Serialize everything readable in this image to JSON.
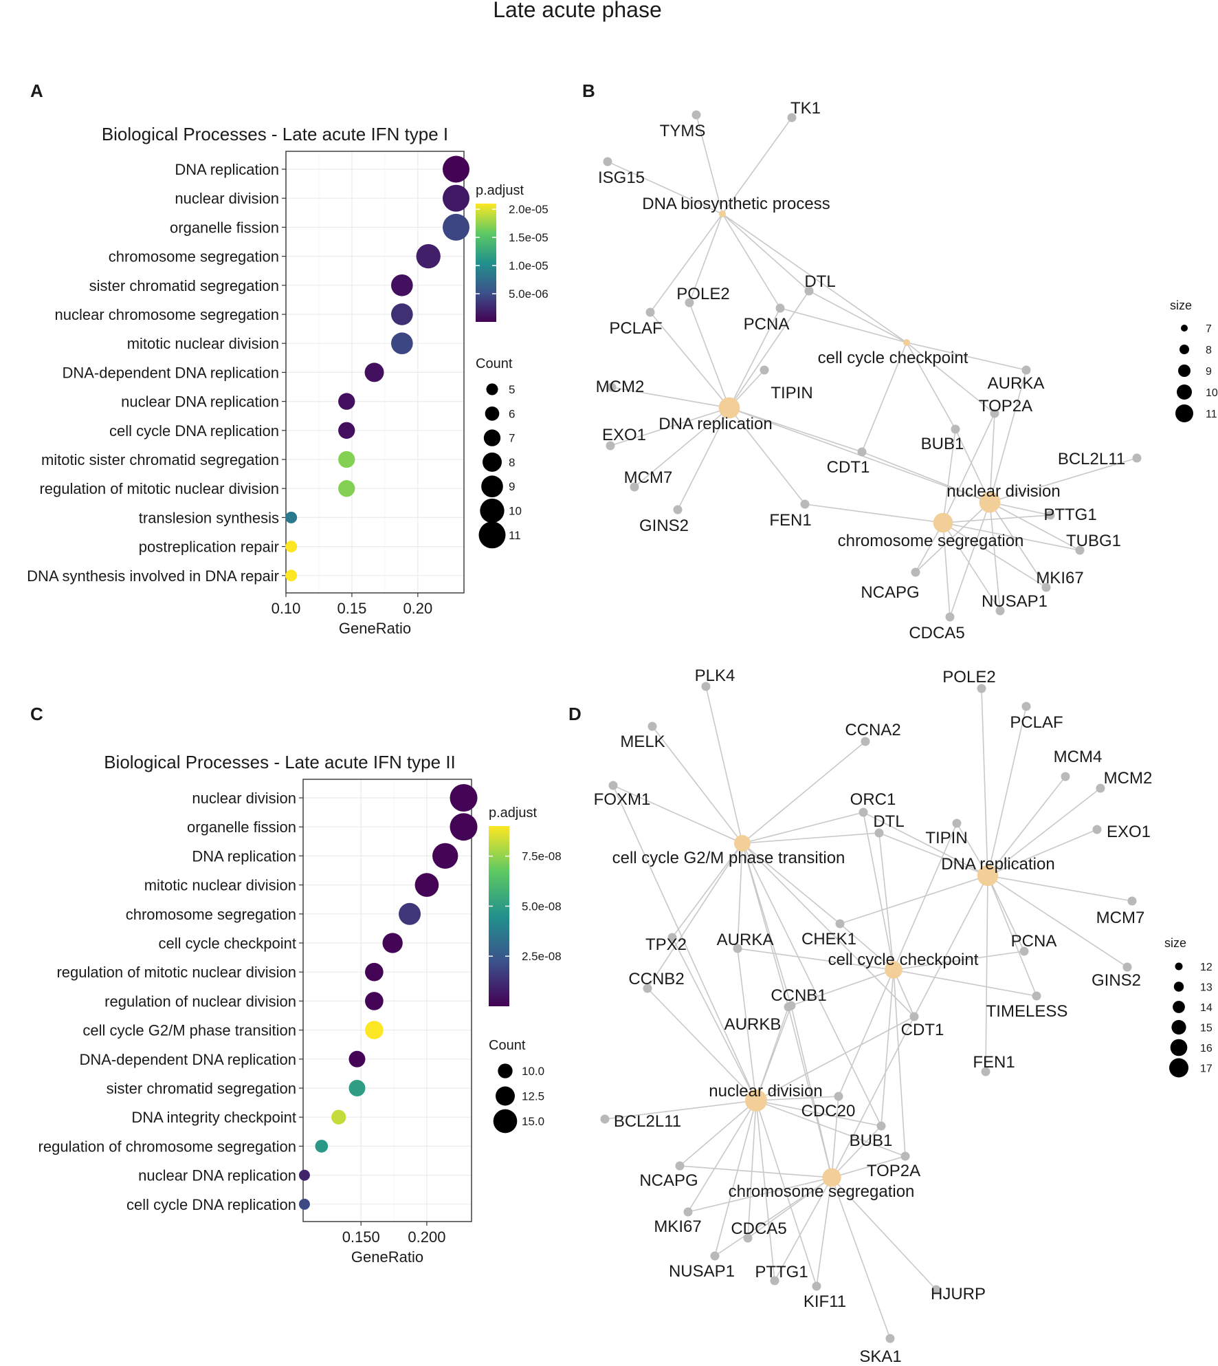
{
  "figure_title": "Late acute phase",
  "panels": {
    "A": "A",
    "B": "B",
    "C": "C",
    "D": "D"
  },
  "chart_data": [
    {
      "panel": "A",
      "type": "scatter",
      "title": "Biological Processes - Late acute IFN type I",
      "xlabel": "GeneRatio",
      "xlim": [
        0.1,
        0.235
      ],
      "xticks": [
        0.1,
        0.15,
        0.2
      ],
      "xtick_labels": [
        "0.10",
        "0.15",
        "0.20"
      ],
      "categories": [
        "DNA replication",
        "nuclear division",
        "organelle fission",
        "chromosome segregation",
        "sister chromatid segregation",
        "nuclear chromosome segregation",
        "mitotic nuclear division",
        "DNA-dependent DNA replication",
        "nuclear DNA replication",
        "cell cycle DNA replication",
        "mitotic sister chromatid segregation",
        "regulation of mitotic nuclear division",
        "translesion synthesis",
        "postreplication repair",
        "DNA synthesis involved in DNA repair"
      ],
      "gene_ratio": [
        0.229,
        0.229,
        0.229,
        0.208,
        0.188,
        0.188,
        0.188,
        0.167,
        0.146,
        0.146,
        0.146,
        0.146,
        0.104,
        0.104,
        0.104
      ],
      "count": [
        11,
        11,
        11,
        10,
        9,
        9,
        9,
        8,
        7,
        7,
        7,
        7,
        5,
        5,
        5
      ],
      "p_adjust": [
        1e-07,
        1.5e-06,
        4.5e-06,
        2e-06,
        1e-06,
        3e-06,
        4.5e-06,
        1e-06,
        1e-06,
        1e-06,
        1.7e-05,
        1.7e-05,
        8.5e-06,
        2.1e-05,
        2.1e-05
      ],
      "color_legend": {
        "title": "p.adjust",
        "min": 0,
        "max": 2.1e-05,
        "breaks": [
          2e-05,
          1.5e-05,
          1e-05,
          5e-06
        ],
        "labels": [
          "2.0e-05",
          "1.5e-05",
          "1.0e-05",
          "5.0e-06"
        ]
      },
      "size_legend": {
        "title": "Count",
        "values": [
          5,
          6,
          7,
          8,
          9,
          10,
          11
        ],
        "labels": [
          "5",
          "6",
          "7",
          "8",
          "9",
          "10",
          "11"
        ],
        "min": 5,
        "max": 11
      }
    },
    {
      "panel": "C",
      "type": "scatter",
      "title": "Biological Processes - Late acute IFN type II",
      "xlabel": "GeneRatio",
      "xlim": [
        0.106,
        0.234
      ],
      "xticks": [
        0.15,
        0.2
      ],
      "xtick_labels": [
        "0.150",
        "0.200"
      ],
      "categories": [
        "nuclear division",
        "organelle fission",
        "DNA replication",
        "mitotic nuclear division",
        "chromosome segregation",
        "cell cycle checkpoint",
        "regulation of mitotic nuclear division",
        "regulation of nuclear division",
        "cell cycle G2/M phase transition",
        "DNA-dependent DNA replication",
        "sister chromatid segregation",
        "DNA integrity checkpoint",
        "regulation of chromosome segregation",
        "nuclear DNA replication",
        "cell cycle DNA replication"
      ],
      "gene_ratio": [
        0.228,
        0.228,
        0.214,
        0.2,
        0.187,
        0.174,
        0.16,
        0.16,
        0.16,
        0.147,
        0.147,
        0.133,
        0.12,
        0.107,
        0.107
      ],
      "count": [
        17,
        17,
        16,
        15,
        14,
        13,
        12,
        12,
        12,
        11,
        11,
        10,
        9,
        8,
        8
      ],
      "p_adjust": [
        1e-09,
        1e-09,
        1e-09,
        1e-09,
        1.5e-08,
        1e-09,
        1e-09,
        1e-09,
        9e-08,
        1e-09,
        5e-08,
        8.2e-08,
        4.8e-08,
        1e-08,
        2e-08
      ],
      "color_legend": {
        "title": "p.adjust",
        "min": 0,
        "max": 9e-08,
        "breaks": [
          7.5e-08,
          5e-08,
          2.5e-08
        ],
        "labels": [
          "7.5e-08",
          "5.0e-08",
          "2.5e-08"
        ]
      },
      "size_legend": {
        "title": "Count",
        "values": [
          10.0,
          12.5,
          15.0
        ],
        "labels": [
          "10.0",
          "12.5",
          "15.0"
        ],
        "min": 8,
        "max": 17
      }
    },
    {
      "panel": "B",
      "type": "network",
      "size_legend": {
        "title": "size",
        "values": [
          7,
          8,
          9,
          10,
          11
        ],
        "labels": [
          "7",
          "8",
          "9",
          "10",
          "11"
        ]
      },
      "terms": [
        {
          "name": "DNA biosynthetic process",
          "size": 5
        },
        {
          "name": "cell cycle checkpoint",
          "size": 5
        },
        {
          "name": "DNA replication",
          "size": 11
        },
        {
          "name": "nuclear division",
          "size": 11
        },
        {
          "name": "chromosome segregation",
          "size": 10
        }
      ],
      "genes": [
        "TYMS",
        "TK1",
        "ISG15",
        "POLE2",
        "DTL",
        "PCLAF",
        "PCNA",
        "MCM2",
        "TIPIN",
        "AURKA",
        "TOP2A",
        "EXO1",
        "BUB1",
        "CDT1",
        "BCL2L11",
        "MCM7",
        "GINS2",
        "FEN1",
        "PTTG1",
        "TUBG1",
        "MKI67",
        "NCAPG",
        "NUSAP1",
        "CDCA5"
      ]
    },
    {
      "panel": "D",
      "type": "network",
      "size_legend": {
        "title": "size",
        "values": [
          12,
          13,
          14,
          15,
          16,
          17
        ],
        "labels": [
          "12",
          "13",
          "14",
          "15",
          "16",
          "17"
        ]
      },
      "terms": [
        {
          "name": "cell cycle G2/M phase transition",
          "size": 12
        },
        {
          "name": "DNA replication",
          "size": 16
        },
        {
          "name": "cell cycle checkpoint",
          "size": 13
        },
        {
          "name": "nuclear division",
          "size": 17
        },
        {
          "name": "chromosome segregation",
          "size": 14
        }
      ],
      "genes": [
        "PLK4",
        "POLE2",
        "MELK",
        "PCLAF",
        "CCNA2",
        "MCM4",
        "MCM2",
        "FOXM1",
        "ORC1",
        "DTL",
        "TIPIN",
        "EXO1",
        "MCM7",
        "TPX2",
        "AURKA",
        "CHEK1",
        "PCNA",
        "CCNB2",
        "CCNB1",
        "TIMELESS",
        "GINS2",
        "AURKB",
        "CDT1",
        "FEN1",
        "CDC20",
        "BCL2L11",
        "BUB1",
        "TOP2A",
        "NCAPG",
        "MKI67",
        "CDCA5",
        "NUSAP1",
        "PTTG1",
        "KIF11",
        "HJURP",
        "SKA1"
      ]
    }
  ],
  "colors": {
    "low": "#440154",
    "mid1": "#3b528b",
    "mid2": "#21918c",
    "mid3": "#5ec962",
    "high": "#fde725",
    "term_node": "#f2cf98",
    "gene_node": "#b9b9b9",
    "edge": "#c8c8c8"
  }
}
